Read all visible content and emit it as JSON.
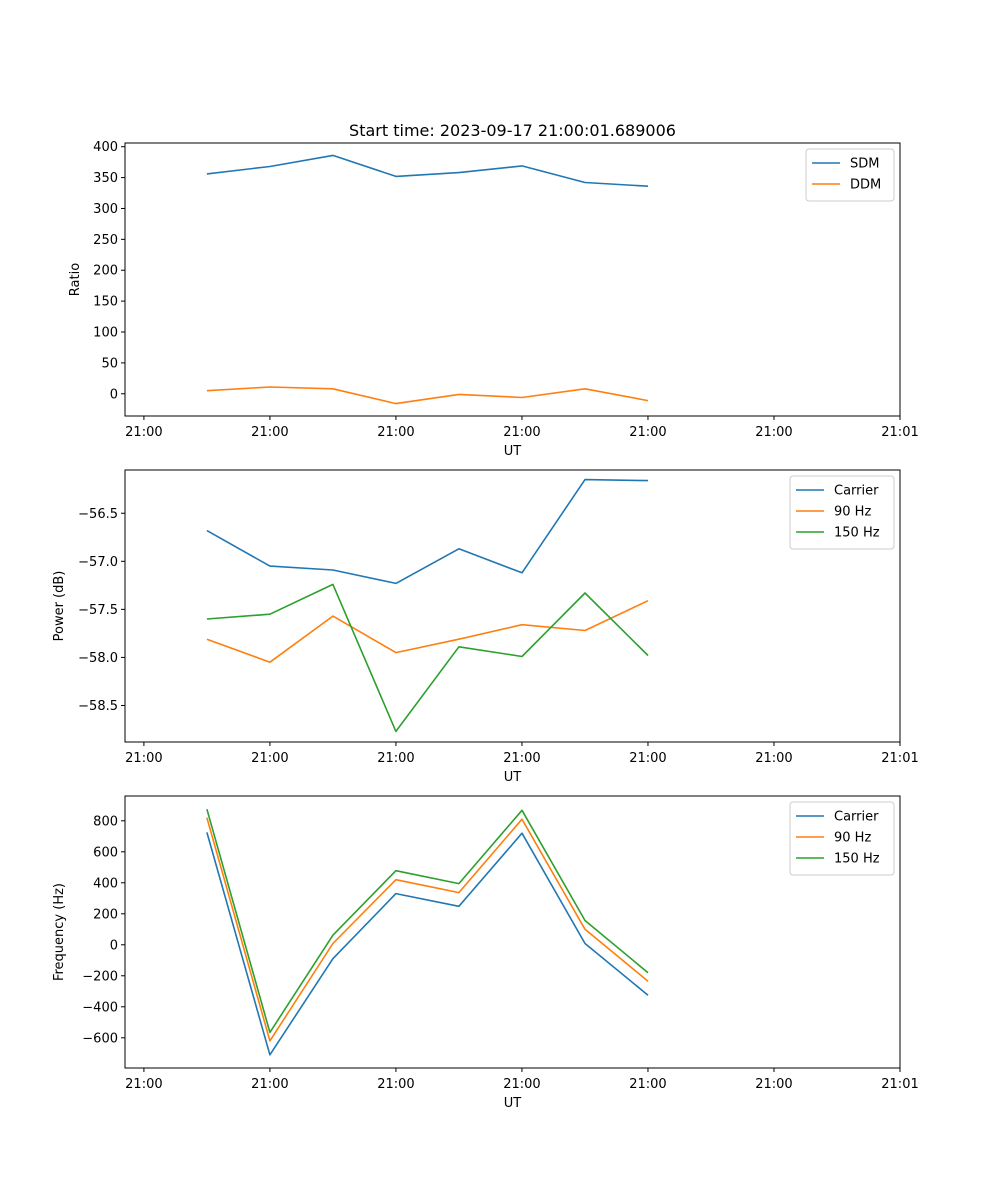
{
  "chart_data": [
    {
      "type": "line",
      "title": "Start time: 2023-09-17 21:00:01.689006",
      "xlabel": "UT",
      "ylabel": "Ratio",
      "x": [
        0.5,
        1.0,
        1.5,
        2.0,
        2.5,
        3.0,
        3.5,
        4.0
      ],
      "xlim": [
        -0.15,
        6.0
      ],
      "xticks": [
        0,
        1,
        2,
        3,
        4,
        5,
        6
      ],
      "xtick_labels": [
        "21:00",
        "21:00",
        "21:00",
        "21:00",
        "21:00",
        "21:00",
        "21:01"
      ],
      "ylim": [
        -36,
        406
      ],
      "yticks": [
        0,
        50,
        100,
        150,
        200,
        250,
        300,
        350,
        400
      ],
      "ytick_labels": [
        "0",
        "50",
        "100",
        "150",
        "200",
        "250",
        "300",
        "350",
        "400"
      ],
      "legend": "top-right",
      "series": [
        {
          "name": "SDM",
          "color": "#1f77b4",
          "values": [
            356,
            368,
            386,
            352,
            358,
            369,
            342,
            336
          ]
        },
        {
          "name": "DDM",
          "color": "#ff7f0e",
          "values": [
            5,
            11,
            8,
            -16,
            -1,
            -6,
            8,
            -11
          ]
        }
      ]
    },
    {
      "type": "line",
      "title": "",
      "xlabel": "UT",
      "ylabel": "Power (dB)",
      "x": [
        0.5,
        1.0,
        1.5,
        2.0,
        2.5,
        3.0,
        3.5,
        4.0
      ],
      "xlim": [
        -0.15,
        6.0
      ],
      "xticks": [
        0,
        1,
        2,
        3,
        4,
        5,
        6
      ],
      "xtick_labels": [
        "21:00",
        "21:00",
        "21:00",
        "21:00",
        "21:00",
        "21:00",
        "21:01"
      ],
      "ylim": [
        -58.88,
        -56.05
      ],
      "yticks": [
        -58.5,
        -58.0,
        -57.5,
        -57.0,
        -56.5
      ],
      "ytick_labels": [
        "−58.5",
        "−58.0",
        "−57.5",
        "−57.0",
        "−56.5"
      ],
      "legend": "top-right",
      "series": [
        {
          "name": "Carrier",
          "color": "#1f77b4",
          "values": [
            -56.68,
            -57.05,
            -57.09,
            -57.23,
            -56.87,
            -57.12,
            -56.15,
            -56.16
          ]
        },
        {
          "name": "90 Hz",
          "color": "#ff7f0e",
          "values": [
            -57.81,
            -58.05,
            -57.57,
            -57.95,
            -57.81,
            -57.66,
            -57.72,
            -57.41
          ]
        },
        {
          "name": "150 Hz",
          "color": "#2ca02c",
          "values": [
            -57.6,
            -57.55,
            -57.24,
            -58.77,
            -57.89,
            -57.99,
            -57.33,
            -57.98
          ]
        }
      ]
    },
    {
      "type": "line",
      "title": "",
      "xlabel": "UT",
      "ylabel": "Frequency (Hz)",
      "x": [
        0.5,
        1.0,
        1.5,
        2.0,
        2.5,
        3.0,
        3.5,
        4.0
      ],
      "xlim": [
        -0.15,
        6.0
      ],
      "xticks": [
        0,
        1,
        2,
        3,
        4,
        5,
        6
      ],
      "xtick_labels": [
        "21:00",
        "21:00",
        "21:00",
        "21:00",
        "21:00",
        "21:00",
        "21:01"
      ],
      "ylim": [
        -795,
        960
      ],
      "yticks": [
        -600,
        -400,
        -200,
        0,
        200,
        400,
        600,
        800
      ],
      "ytick_labels": [
        "−600",
        "−400",
        "−200",
        "0",
        "200",
        "400",
        "600",
        "800"
      ],
      "legend": "top-right",
      "series": [
        {
          "name": "Carrier",
          "color": "#1f77b4",
          "values": [
            725,
            -710,
            -90,
            330,
            248,
            720,
            8,
            -325
          ]
        },
        {
          "name": "90 Hz",
          "color": "#ff7f0e",
          "values": [
            820,
            -620,
            8,
            420,
            337,
            810,
            100,
            -235
          ]
        },
        {
          "name": "150 Hz",
          "color": "#2ca02c",
          "values": [
            875,
            -565,
            62,
            478,
            395,
            868,
            157,
            -180
          ]
        }
      ]
    }
  ]
}
